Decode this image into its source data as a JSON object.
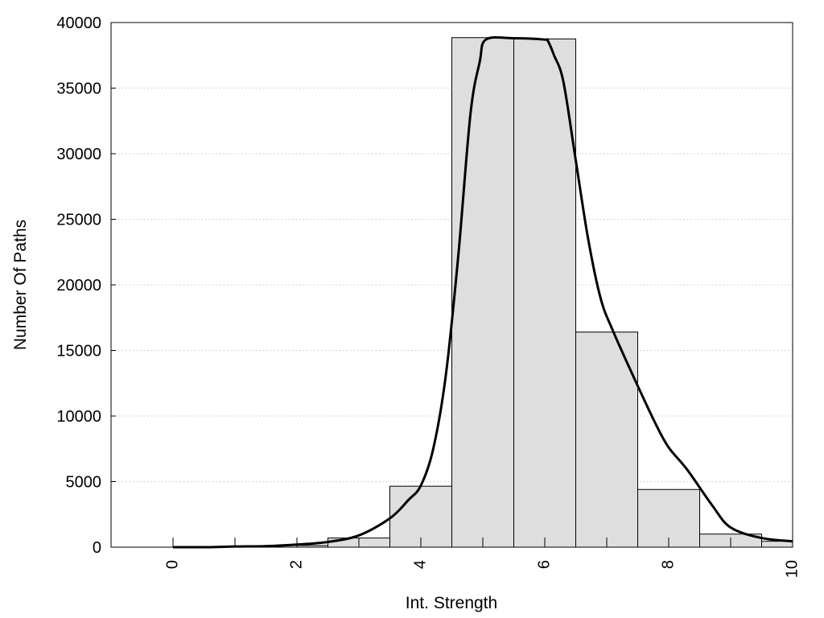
{
  "chart_data": {
    "type": "bar",
    "xlabel": "Int. Strength",
    "ylabel": "Number Of Paths",
    "xlim": [
      -1,
      10
    ],
    "ylim": [
      0,
      40000
    ],
    "xticks": [
      "0",
      "2",
      "4",
      "6",
      "8",
      "10"
    ],
    "yticks": [
      "0",
      "5000",
      "10000",
      "15000",
      "20000",
      "25000",
      "30000",
      "35000",
      "40000"
    ],
    "grid": {
      "y": true,
      "style": "dotted"
    },
    "bar_color": "#dedede",
    "bars": [
      {
        "x": 0,
        "value": 0
      },
      {
        "x": 1,
        "value": 20
      },
      {
        "x": 2,
        "value": 130
      },
      {
        "x": 3,
        "value": 700
      },
      {
        "x": 4,
        "value": 4650
      },
      {
        "x": 5,
        "value": 38850
      },
      {
        "x": 6,
        "value": 38750
      },
      {
        "x": 7,
        "value": 16400
      },
      {
        "x": 8,
        "value": 4400
      },
      {
        "x": 9,
        "value": 1000
      },
      {
        "x": 10,
        "value": 450
      }
    ],
    "curve": {
      "x": [
        0,
        0.6,
        1,
        1.5,
        2,
        2.5,
        3,
        3.5,
        3.8,
        4,
        4.2,
        4.4,
        4.6,
        4.8,
        4.95,
        5.05,
        5.5,
        6,
        6.05,
        6.15,
        6.3,
        6.5,
        6.7,
        6.9,
        7.1,
        7.5,
        7.8,
        8,
        8.3,
        8.7,
        9,
        9.5,
        10
      ],
      "y": [
        0,
        0,
        50,
        80,
        200,
        400,
        900,
        2200,
        3600,
        4700,
        7500,
        13000,
        22000,
        33000,
        37000,
        38700,
        38800,
        38700,
        38600,
        37500,
        35500,
        29500,
        23500,
        19000,
        16500,
        12300,
        9300,
        7600,
        5900,
        3200,
        1500,
        700,
        450
      ]
    }
  }
}
